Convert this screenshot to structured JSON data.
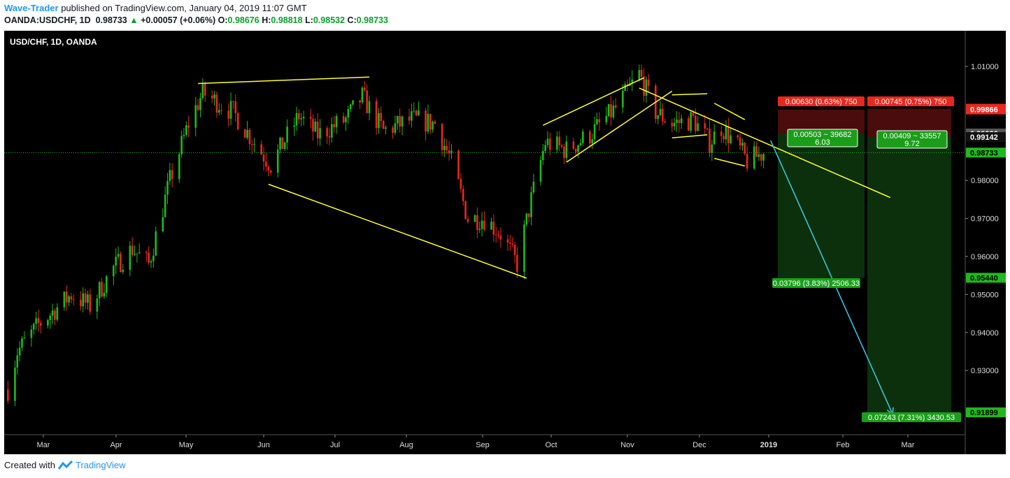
{
  "header": {
    "author": "Wave-Trader",
    "published_text": "published on TradingView.com, January 04, 2019 11:07 GMT",
    "symbol": "OANDA:USDCHF, 1D",
    "last": "0.98733",
    "change_arrow": "▲",
    "change": "+0.00057 (+0.06%)",
    "o_label": "O:",
    "o": "0.98676",
    "h_label": "H:",
    "h": "0.98818",
    "l_label": "L:",
    "l": "0.98532",
    "c_label": "C:",
    "c": "0.98733"
  },
  "footer": {
    "created_with": "Created with",
    "brand": "TradingView"
  },
  "colors": {
    "background": "#000000",
    "up": "#1fb91f",
    "down": "#e8281e",
    "trendline": "#ffff33",
    "projection": "#3ec9e6",
    "stop_zone": "#4a0c0c",
    "target_zone": "#0c300c"
  },
  "chart_data": {
    "type": "candlestick",
    "title": "USD/CHF, 1D, OANDA",
    "x_tick_labels": [
      "Mar",
      "Apr",
      "May",
      "Jun",
      "Jul",
      "Aug",
      "Sep",
      "Oct",
      "Nov",
      "Dec",
      "2019",
      "Feb",
      "Mar"
    ],
    "y_ticks": [
      0.93,
      0.94,
      0.95,
      0.96,
      0.97,
      0.98,
      1.01
    ],
    "y_tick_labels": [
      "0.93000",
      "0.94000",
      "0.95000",
      "0.96000",
      "0.97000",
      "0.98000",
      "1.01000"
    ],
    "ylim": [
      0.9063,
      1.0247
    ],
    "grid": false,
    "current_price": "0.98733",
    "price_anchors": [
      {
        "date": "2018-02-16",
        "price": 0.925
      },
      {
        "date": "2018-02-20",
        "price": 0.935
      },
      {
        "date": "2018-03-01",
        "price": 0.942
      },
      {
        "date": "2018-03-15",
        "price": 0.95
      },
      {
        "date": "2018-03-23",
        "price": 0.947
      },
      {
        "date": "2018-04-02",
        "price": 0.957
      },
      {
        "date": "2018-04-10",
        "price": 0.962
      },
      {
        "date": "2018-04-17",
        "price": 0.958
      },
      {
        "date": "2018-04-26",
        "price": 0.98
      },
      {
        "date": "2018-05-04",
        "price": 0.995
      },
      {
        "date": "2018-05-10",
        "price": 1.003
      },
      {
        "date": "2018-05-23",
        "price": 0.998
      },
      {
        "date": "2018-06-01",
        "price": 0.99
      },
      {
        "date": "2018-06-08",
        "price": 0.984
      },
      {
        "date": "2018-06-20",
        "price": 0.997
      },
      {
        "date": "2018-06-28",
        "price": 0.992
      },
      {
        "date": "2018-07-10",
        "price": 0.996
      },
      {
        "date": "2018-07-17",
        "price": 1.002
      },
      {
        "date": "2018-07-26",
        "price": 0.993
      },
      {
        "date": "2018-08-07",
        "price": 0.996
      },
      {
        "date": "2018-08-17",
        "price": 0.995
      },
      {
        "date": "2018-08-24",
        "price": 0.985
      },
      {
        "date": "2018-08-31",
        "price": 0.97
      },
      {
        "date": "2018-09-07",
        "price": 0.97
      },
      {
        "date": "2018-09-14",
        "price": 0.966
      },
      {
        "date": "2018-09-21",
        "price": 0.958
      },
      {
        "date": "2018-09-27",
        "price": 0.975
      },
      {
        "date": "2018-10-03",
        "price": 0.99
      },
      {
        "date": "2018-10-12",
        "price": 0.988
      },
      {
        "date": "2018-10-22",
        "price": 0.992
      },
      {
        "date": "2018-11-02",
        "price": 0.999
      },
      {
        "date": "2018-11-12",
        "price": 1.008
      },
      {
        "date": "2018-11-19",
        "price": 0.998
      },
      {
        "date": "2018-11-26",
        "price": 0.995
      },
      {
        "date": "2018-12-05",
        "price": 0.996
      },
      {
        "date": "2018-12-12",
        "price": 0.99
      },
      {
        "date": "2018-12-17",
        "price": 0.994
      },
      {
        "date": "2018-12-24",
        "price": 0.989
      },
      {
        "date": "2018-12-28",
        "price": 0.985
      },
      {
        "date": "2019-01-04",
        "price": 0.9873
      }
    ],
    "price_axis_markers": [
      {
        "label": "0.99887",
        "value": 0.99887,
        "style": "red"
      },
      {
        "label": "0.99866",
        "value": 0.99866,
        "style": "red"
      },
      {
        "label": "0.99236",
        "value": 0.99236,
        "style": "grey"
      },
      {
        "label": "0.99142",
        "value": 0.99142,
        "style": "black"
      },
      {
        "label": "0.98733",
        "value": 0.98733,
        "style": "green"
      },
      {
        "label": "0.95440",
        "value": 0.9544,
        "style": "green"
      },
      {
        "label": "0.91899",
        "value": 0.91899,
        "style": "green"
      }
    ],
    "positions": [
      {
        "entry": 0.99236,
        "stop": 0.99866,
        "target": 0.9544,
        "stop_label": "0.00630 (0.63%) 750",
        "ratio_label_1": "0.00503 ~ 39682",
        "ratio_label_2": "6.03",
        "target_label": "0.03796 (3.83%) 2506.33"
      },
      {
        "entry": 0.99142,
        "stop": 0.99887,
        "target": 0.91899,
        "stop_label": "0.00745 (0.75%) 750",
        "ratio_label_1": "0.00409 ~ 33557",
        "ratio_label_2": "9.72",
        "target_label": "0.07243 (7.31%) 3430.53"
      }
    ],
    "trendlines": [
      {
        "from": [
          "2018-05-08",
          1.0055
        ],
        "to": [
          "2018-07-20",
          1.0072
        ]
      },
      {
        "from": [
          "2018-06-07",
          0.979
        ],
        "to": [
          "2018-09-25",
          0.9543
        ]
      },
      {
        "from": [
          "2018-10-02",
          0.9945
        ],
        "to": [
          "2018-11-14",
          1.007
        ]
      },
      {
        "from": [
          "2018-10-12",
          0.9848
        ],
        "to": [
          "2018-11-26",
          1.0035
        ]
      },
      {
        "from": [
          "2018-11-12",
          1.0043
        ],
        "to": [
          "2019-02-27",
          0.9755
        ]
      },
      {
        "from": [
          "2018-11-26",
          1.0025
        ],
        "to": [
          "2018-12-11",
          1.0028
        ]
      },
      {
        "from": [
          "2018-11-26",
          0.9912
        ],
        "to": [
          "2018-12-11",
          0.992
        ]
      },
      {
        "from": [
          "2018-12-14",
          1.0003
        ],
        "to": [
          "2018-12-27",
          0.996
        ]
      },
      {
        "from": [
          "2018-12-14",
          0.9858
        ],
        "to": [
          "2018-12-27",
          0.9838
        ]
      }
    ],
    "projection": {
      "from": [
        "2019-01-07",
        0.9905
      ],
      "to": [
        "2019-02-28",
        0.9185
      ]
    }
  }
}
